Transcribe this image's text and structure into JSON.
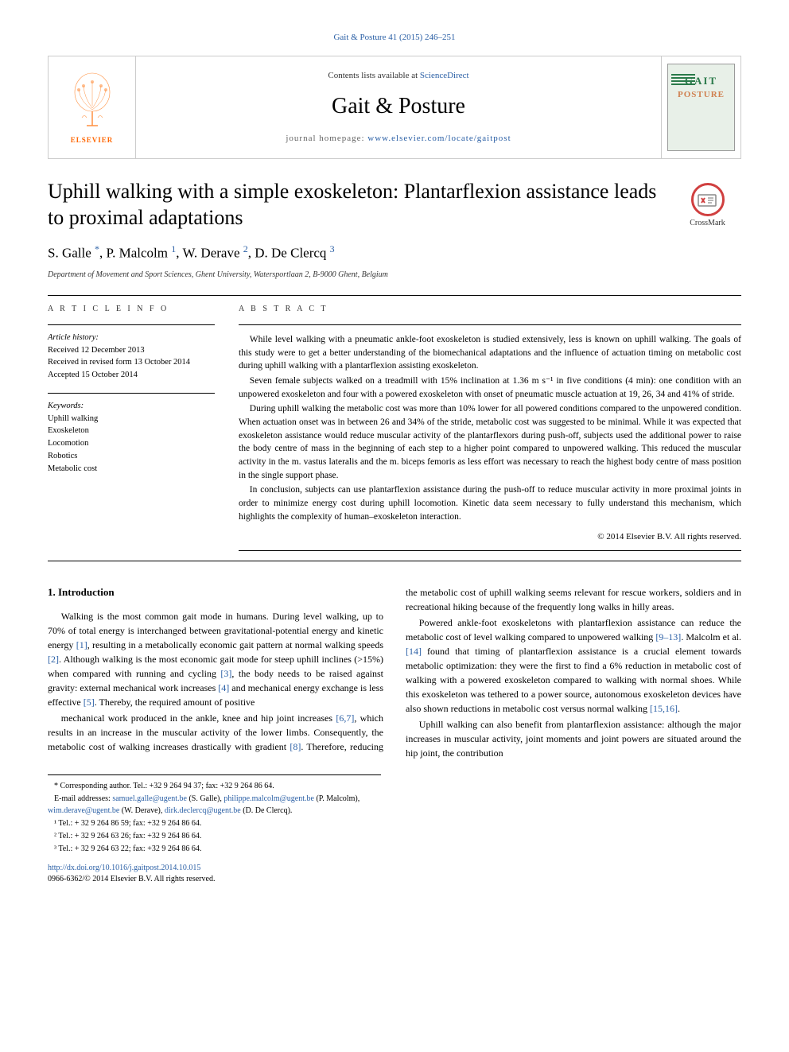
{
  "top_citation": "Gait & Posture 41 (2015) 246–251",
  "header": {
    "contents_prefix": "Contents lists available at ",
    "contents_link": "ScienceDirect",
    "journal_name": "Gait & Posture",
    "homepage_prefix": "journal homepage: ",
    "homepage_url": "www.elsevier.com/locate/gaitpost",
    "publisher_label": "ELSEVIER",
    "cover_line1": "GAIT",
    "cover_line2": "POSTURE"
  },
  "crossmark_label": "CrossMark",
  "title": "Uphill walking with a simple exoskeleton: Plantarflexion assistance leads to proximal adaptations",
  "authors_html": "S. Galle *, P. Malcolm 1, W. Derave 2, D. De Clercq 3",
  "authors": {
    "items": [
      {
        "name": "S. Galle",
        "mark": "*"
      },
      {
        "name": "P. Malcolm",
        "mark": "1"
      },
      {
        "name": "W. Derave",
        "mark": "2"
      },
      {
        "name": "D. De Clercq",
        "mark": "3"
      }
    ]
  },
  "affiliation": "Department of Movement and Sport Sciences, Ghent University, Watersportlaan 2, B-9000 Ghent, Belgium",
  "article_info": {
    "label": "A R T I C L E   I N F O",
    "history_heading": "Article history:",
    "received": "Received 12 December 2013",
    "revised": "Received in revised form 13 October 2014",
    "accepted": "Accepted 15 October 2014",
    "keywords_heading": "Keywords:",
    "keywords": [
      "Uphill walking",
      "Exoskeleton",
      "Locomotion",
      "Robotics",
      "Metabolic cost"
    ]
  },
  "abstract": {
    "label": "A B S T R A C T",
    "paragraphs": [
      "While level walking with a pneumatic ankle-foot exoskeleton is studied extensively, less is known on uphill walking. The goals of this study were to get a better understanding of the biomechanical adaptations and the influence of actuation timing on metabolic cost during uphill walking with a plantarflexion assisting exoskeleton.",
      "Seven female subjects walked on a treadmill with 15% inclination at 1.36 m s⁻¹ in five conditions (4 min): one condition with an unpowered exoskeleton and four with a powered exoskeleton with onset of pneumatic muscle actuation at 19, 26, 34 and 41% of stride.",
      "During uphill walking the metabolic cost was more than 10% lower for all powered conditions compared to the unpowered condition. When actuation onset was in between 26 and 34% of the stride, metabolic cost was suggested to be minimal. While it was expected that exoskeleton assistance would reduce muscular activity of the plantarflexors during push-off, subjects used the additional power to raise the body centre of mass in the beginning of each step to a higher point compared to unpowered walking. This reduced the muscular activity in the m. vastus lateralis and the m. biceps femoris as less effort was necessary to reach the highest body centre of mass position in the single support phase.",
      "In conclusion, subjects can use plantarflexion assistance during the push-off to reduce muscular activity in more proximal joints in order to minimize energy cost during uphill locomotion. Kinetic data seem necessary to fully understand this mechanism, which highlights the complexity of human–exoskeleton interaction."
    ],
    "copyright": "© 2014 Elsevier B.V. All rights reserved."
  },
  "introduction": {
    "heading": "1. Introduction",
    "paragraphs": [
      "Walking is the most common gait mode in humans. During level walking, up to 70% of total energy is interchanged between gravitational-potential energy and kinetic energy [1], resulting in a metabolically economic gait pattern at normal walking speeds [2]. Although walking is the most economic gait mode for steep uphill inclines (>15%) when compared with running and cycling [3], the body needs to be raised against gravity: external mechanical work increases [4] and mechanical energy exchange is less effective [5]. Thereby, the required amount of positive",
      "mechanical work produced in the ankle, knee and hip joint increases [6,7], which results in an increase in the muscular activity of the lower limbs. Consequently, the metabolic cost of walking increases drastically with gradient [8]. Therefore, reducing the metabolic cost of uphill walking seems relevant for rescue workers, soldiers and in recreational hiking because of the frequently long walks in hilly areas.",
      "Powered ankle-foot exoskeletons with plantarflexion assistance can reduce the metabolic cost of level walking compared to unpowered walking [9–13]. Malcolm et al. [14] found that timing of plantarflexion assistance is a crucial element towards metabolic optimization: they were the first to find a 6% reduction in metabolic cost of walking with a powered exoskeleton compared to walking with normal shoes. While this exoskeleton was tethered to a power source, autonomous exoskeleton devices have also shown reductions in metabolic cost versus normal walking [15,16].",
      "Uphill walking can also benefit from plantarflexion assistance: although the major increases in muscular activity, joint moments and joint powers are situated around the hip joint, the contribution"
    ],
    "refs": [
      "[1]",
      "[2]",
      "[3]",
      "[4]",
      "[5]",
      "[6,7]",
      "[8]",
      "[9–13]",
      "[14]",
      "[15,16]"
    ]
  },
  "footnotes": {
    "corr": "* Corresponding author. Tel.: +32 9 264 94 37; fax: +32 9 264 86 64.",
    "email_label": "E-mail addresses: ",
    "emails": [
      {
        "addr": "samuel.galle@ugent.be",
        "who": "(S. Galle)"
      },
      {
        "addr": "philippe.malcolm@ugent.be",
        "who": "(P. Malcolm)"
      },
      {
        "addr": "wim.derave@ugent.be",
        "who": "(W. Derave)"
      },
      {
        "addr": "dirk.declercq@ugent.be",
        "who": "(D. De Clercq)"
      }
    ],
    "tels": [
      "¹ Tel.: + 32 9 264 86 59; fax: +32 9 264 86 64.",
      "² Tel.: + 32 9 264 63 26; fax: +32 9 264 86 64.",
      "³ Tel.: + 32 9 264 63 22; fax: +32 9 264 86 64."
    ]
  },
  "doi": {
    "url": "http://dx.doi.org/10.1016/j.gaitpost.2014.10.015",
    "issn_line": "0966-6362/© 2014 Elsevier B.V. All rights reserved."
  },
  "colors": {
    "link": "#2a5fa5",
    "elsevier_orange": "#ff6600",
    "crossmark_red": "#d04040",
    "cover_green": "#2a7a4a",
    "cover_orange": "#d08050"
  }
}
